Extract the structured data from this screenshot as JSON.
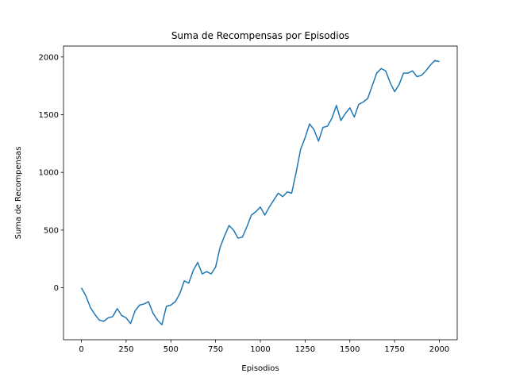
{
  "chart_data": {
    "type": "line",
    "title": "Suma de Recompensas por Episodios",
    "x_label": "Episodios",
    "y_label": "Suma de Recompensas",
    "x": [
      0,
      25,
      50,
      75,
      100,
      125,
      150,
      175,
      200,
      225,
      250,
      275,
      300,
      325,
      350,
      375,
      400,
      425,
      450,
      475,
      500,
      525,
      550,
      575,
      600,
      625,
      650,
      675,
      700,
      725,
      750,
      775,
      800,
      825,
      850,
      875,
      900,
      925,
      950,
      975,
      1000,
      1025,
      1050,
      1075,
      1100,
      1125,
      1150,
      1175,
      1200,
      1225,
      1250,
      1275,
      1300,
      1325,
      1350,
      1375,
      1400,
      1425,
      1450,
      1475,
      1500,
      1525,
      1550,
      1575,
      1600,
      1625,
      1650,
      1675,
      1700,
      1725,
      1750,
      1775,
      1800,
      1825,
      1850,
      1875,
      1900,
      1925,
      1950,
      1975,
      2000
    ],
    "series": [
      {
        "name": "Suma de Recompensas",
        "color": "#1f77b4",
        "values": [
          0,
          -70,
          -170,
          -230,
          -280,
          -290,
          -260,
          -250,
          -180,
          -240,
          -260,
          -310,
          -200,
          -150,
          -140,
          -120,
          -220,
          -280,
          -320,
          -160,
          -150,
          -120,
          -50,
          60,
          40,
          150,
          220,
          120,
          140,
          120,
          180,
          350,
          450,
          540,
          500,
          430,
          440,
          530,
          630,
          660,
          700,
          630,
          700,
          760,
          820,
          790,
          830,
          820,
          1000,
          1200,
          1300,
          1420,
          1370,
          1270,
          1390,
          1400,
          1470,
          1580,
          1450,
          1510,
          1560,
          1480,
          1590,
          1610,
          1640,
          1750,
          1860,
          1900,
          1880,
          1780,
          1700,
          1760,
          1860,
          1860,
          1880,
          1830,
          1840,
          1880,
          1930,
          1970,
          1960
        ]
      }
    ],
    "xlim": [
      -100,
      2100
    ],
    "ylim": [
      -450,
      2095
    ],
    "xticks": [
      0,
      250,
      500,
      750,
      1000,
      1250,
      1500,
      1750,
      2000
    ],
    "yticks": [
      0,
      500,
      1000,
      1500,
      2000
    ]
  }
}
